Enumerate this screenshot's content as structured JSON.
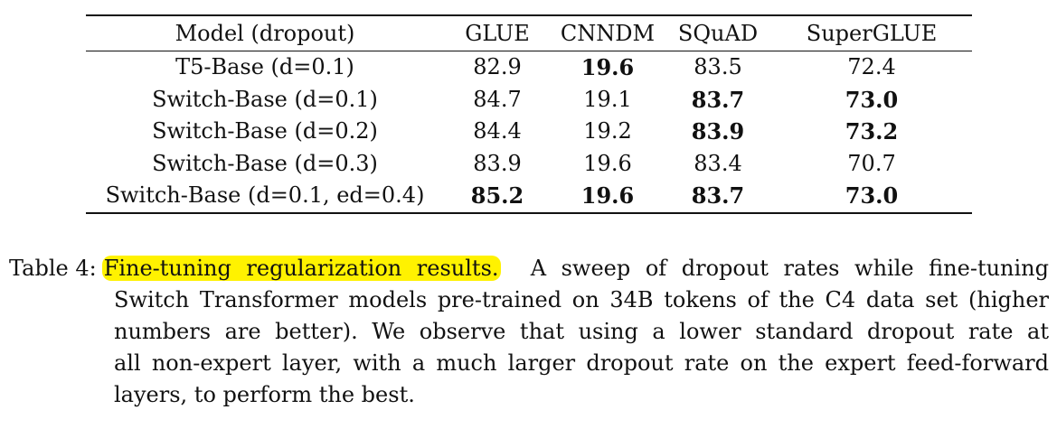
{
  "table": {
    "headers": [
      "Model (dropout)",
      "GLUE",
      "CNNDM",
      "SQuAD",
      "SuperGLUE"
    ],
    "rows": [
      {
        "model": "T5-Base (d=0.1)",
        "glue": "82.9",
        "cnndm": "19.6",
        "squad": "83.5",
        "superglue": "72.4",
        "bold": [
          false,
          true,
          false,
          false
        ]
      },
      {
        "model": "Switch-Base (d=0.1)",
        "glue": "84.7",
        "cnndm": "19.1",
        "squad": "83.7",
        "superglue": "73.0",
        "bold": [
          false,
          false,
          true,
          true
        ]
      },
      {
        "model": "Switch-Base (d=0.2)",
        "glue": "84.4",
        "cnndm": "19.2",
        "squad": "83.9",
        "superglue": "73.2",
        "bold": [
          false,
          false,
          true,
          true
        ]
      },
      {
        "model": "Switch-Base (d=0.3)",
        "glue": "83.9",
        "cnndm": "19.6",
        "squad": "83.4",
        "superglue": "70.7",
        "bold": [
          false,
          false,
          false,
          false
        ]
      },
      {
        "model": "Switch-Base (d=0.1, ed=0.4)",
        "glue": "85.2",
        "cnndm": "19.6",
        "squad": "83.7",
        "superglue": "73.0",
        "bold": [
          true,
          true,
          true,
          true
        ]
      }
    ]
  },
  "caption": {
    "label": "Table 4:",
    "highlighted": "Fine-tuning regularization results.",
    "line1_rest": "A sweep of dropout rates while fine-tuning",
    "line2": "Switch Transformer models pre-trained on 34B tokens of the C4 data set (higher",
    "line3": "numbers are better).  We observe that using a lower standard dropout rate at",
    "line4": "all non-expert layer, with a much larger dropout rate on the expert feed-forward",
    "line5": "layers, to perform the best.",
    "highlight_color": "#fff200"
  }
}
